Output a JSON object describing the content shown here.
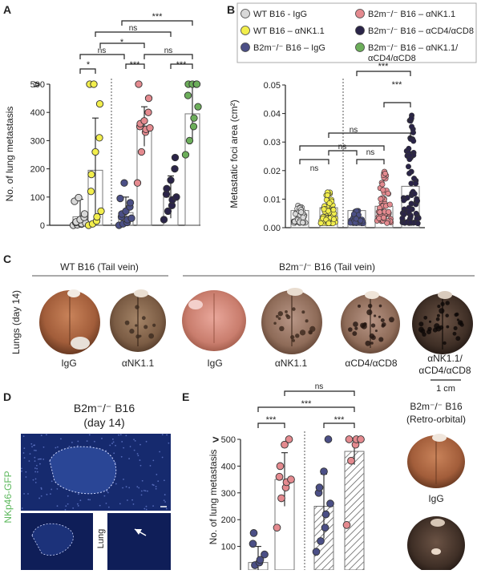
{
  "panel_labels": {
    "a": "A",
    "b": "B",
    "c": "C",
    "d": "D",
    "e": "E"
  },
  "legend": [
    {
      "name": "WT B16 - IgG",
      "color": "#d8d8d8"
    },
    {
      "name": "B2m⁻/⁻ B16 – αNK1.1",
      "color": "#e48a8f"
    },
    {
      "name": "WT B16 – αNK1.1",
      "color": "#f2ee4c"
    },
    {
      "name": "B2m⁻/⁻ B16 – αCD4/αCD8",
      "color": "#2a2448"
    },
    {
      "name": "B2m⁻/⁻ B16 – IgG",
      "color": "#4b4f86"
    },
    {
      "name": "B2m⁻/⁻ B16 – αNK1.1/",
      "name2": "αCD4/αCD8",
      "color": "#6cae5a"
    }
  ],
  "chart_data": [
    {
      "panel": "A",
      "type": "scatter",
      "ylabel": "No. of lung metastasis",
      "y_break_symbol": ">",
      "ylim": [
        0,
        500
      ],
      "yticks": [
        0,
        100,
        200,
        300,
        400,
        500
      ],
      "series": [
        {
          "mean": 30,
          "sd": 62,
          "points": [
            0,
            2,
            4,
            6,
            8,
            10,
            12,
            20,
            28,
            40,
            85,
            98
          ]
        },
        {
          "mean": 195,
          "sd": 185,
          "points": [
            0,
            5,
            15,
            30,
            50,
            120,
            180,
            260,
            310,
            430,
            500,
            500
          ]
        },
        {
          "mean": 45,
          "sd": 55,
          "points": [
            0,
            5,
            10,
            20,
            25,
            30,
            40,
            50,
            65,
            80,
            95,
            150
          ]
        },
        {
          "mean": 350,
          "sd": 70,
          "points": [
            150,
            260,
            330,
            340,
            345,
            350,
            360,
            370,
            400,
            450,
            500
          ]
        },
        {
          "mean": 100,
          "sd": 75,
          "points": [
            20,
            50,
            70,
            90,
            100,
            110,
            130,
            160,
            200,
            240
          ]
        },
        {
          "mean": 395,
          "sd": 100,
          "points": [
            250,
            300,
            350,
            380,
            420,
            460,
            500,
            500,
            500,
            500
          ]
        }
      ],
      "significance": [
        "*",
        "ns",
        "***",
        "ns",
        "***",
        "*",
        "ns",
        "***"
      ]
    },
    {
      "panel": "B",
      "type": "scatter",
      "ylabel": "Metastatic foci area (cm²)",
      "ylim": [
        0,
        0.05
      ],
      "yticks": [
        "0.00",
        "0.01",
        "0.02",
        "0.03",
        "0.04",
        "0.05"
      ],
      "means": [
        0.006,
        0.007,
        0.006,
        0.0075,
        0.0145
      ],
      "significance": [
        "ns",
        "ns",
        "ns",
        "ns",
        "***",
        "***"
      ]
    },
    {
      "panel": "E",
      "type": "scatter",
      "ylabel": "No. of lung metastasis",
      "y_break_symbol": ">",
      "yticks": [
        100,
        200,
        300,
        400,
        500
      ],
      "series": [
        {
          "mean": 40,
          "sd": 60,
          "points": [
            10,
            30,
            40,
            50,
            70,
            110,
            150
          ]
        },
        {
          "mean": 350,
          "sd": 100,
          "points": [
            170,
            280,
            320,
            340,
            350,
            360,
            400,
            480,
            500
          ]
        },
        {
          "mean": 250,
          "sd": 120,
          "points": [
            80,
            120,
            170,
            220,
            260,
            300,
            320,
            380,
            500
          ]
        },
        {
          "mean": 455,
          "sd": 50,
          "points": [
            180,
            420,
            480,
            500,
            500,
            500
          ]
        }
      ],
      "significance": [
        "***",
        "***",
        "***",
        "ns"
      ]
    }
  ],
  "panel_c": {
    "group_wt": "WT B16 (Tail vein)",
    "group_b2m": "B2m⁻/⁻ B16 (Tail vein)",
    "side_label": "Lungs (day 14)",
    "captions": [
      "IgG",
      "αNK1.1",
      "IgG",
      "αNK1.1",
      "αCD4/αCD8",
      "αNK1.1/",
      "αCD4/αCD8"
    ],
    "scalebar": "1 cm"
  },
  "panel_d": {
    "title_line1": "B2m⁻/⁻ B16",
    "title_line2": "(day 14)",
    "side_label": "NKp46-GFP",
    "inset_label": "Lung"
  },
  "panel_e_right": {
    "title_line1": "B2m⁻/⁻ B16",
    "title_line2": "(Retro-orbital)",
    "caption": "IgG"
  }
}
